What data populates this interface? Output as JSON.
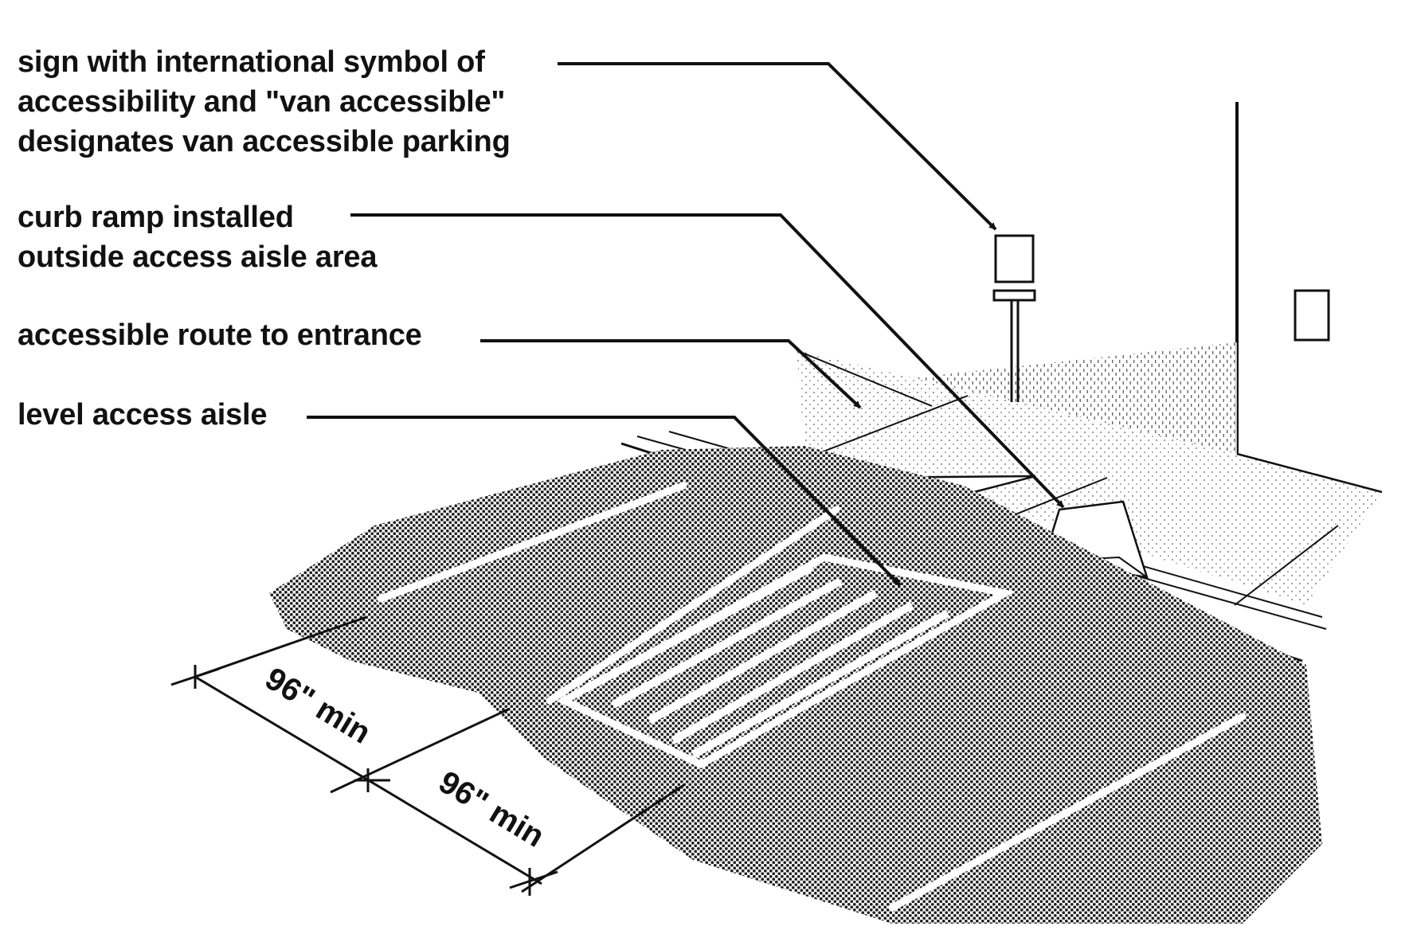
{
  "callouts": {
    "sign": {
      "line1": "sign with international symbol of",
      "line2": "accessibility and \"van accessible\"",
      "line3": "designates van accessible parking"
    },
    "curb_ramp": {
      "line1": "curb ramp installed",
      "line2": "outside access aisle area"
    },
    "accessible_route": {
      "line1": "accessible route to entrance"
    },
    "access_aisle": {
      "line1": "level access aisle"
    }
  },
  "dimensions": {
    "parking_space_width": "96\" min",
    "access_aisle_width": "96\" min"
  },
  "colors": {
    "ink": "#111111",
    "paper": "#ffffff"
  }
}
